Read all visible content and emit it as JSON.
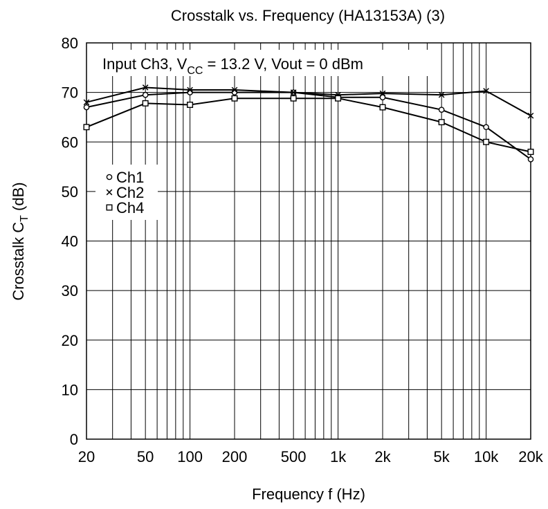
{
  "chart_data": {
    "type": "line",
    "title": "Crosstalk vs. Frequency (HA13153A) (3)",
    "xlabel": "Frequency  f  (Hz)",
    "ylabel": {
      "main": "Crosstalk  C",
      "sub": "T",
      "unit": "  (dB)"
    },
    "annotation": {
      "prefix": "Input Ch3, V",
      "sub": "CC",
      "suffix": " = 13.2 V, Vout = 0 dBm"
    },
    "x_scale": "log",
    "xlim": [
      20,
      20000
    ],
    "ylim": [
      0,
      80
    ],
    "grid": true,
    "legend_position": "left-middle",
    "x_tick_values": [
      20,
      50,
      100,
      200,
      500,
      1000,
      2000,
      5000,
      10000,
      20000
    ],
    "x_tick_labels": [
      "20",
      "50",
      "100",
      "200",
      "500",
      "1k",
      "2k",
      "5k",
      "10k",
      "20k"
    ],
    "y_tick_values": [
      0,
      10,
      20,
      30,
      40,
      50,
      60,
      70,
      80
    ],
    "y_tick_labels": [
      "0",
      "10",
      "20",
      "30",
      "40",
      "50",
      "60",
      "70",
      "80"
    ],
    "x": [
      20,
      50,
      100,
      200,
      500,
      1000,
      2000,
      5000,
      10000,
      20000
    ],
    "series": [
      {
        "name": "Ch1",
        "marker": "circle",
        "values": [
          67,
          69.5,
          70,
          70,
          70,
          69,
          69,
          66.5,
          63,
          56.5
        ]
      },
      {
        "name": "Ch2",
        "marker": "x",
        "values": [
          68,
          71,
          70.5,
          70.5,
          70,
          69.5,
          69.8,
          69.5,
          70.3,
          65.3
        ]
      },
      {
        "name": "Ch4",
        "marker": "square",
        "values": [
          63,
          67.8,
          67.5,
          68.8,
          68.8,
          68.8,
          67,
          64,
          60,
          58
        ]
      }
    ]
  }
}
